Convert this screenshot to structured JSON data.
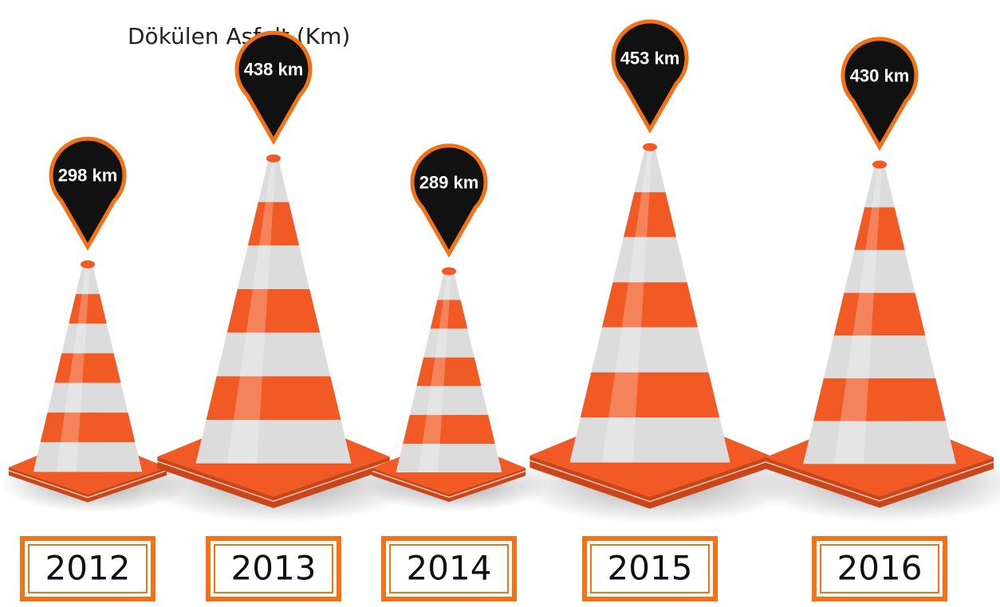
{
  "chart_data": {
    "type": "bar",
    "title": "Dökülen Asfalt (Km)",
    "categories": [
      "2012",
      "2013",
      "2014",
      "2015",
      "2016"
    ],
    "values": [
      298,
      438,
      289,
      453,
      430
    ],
    "value_labels": [
      "298 km",
      "438 km",
      "289 km",
      "453 km",
      "430 km"
    ],
    "color": "#f15a24"
  }
}
